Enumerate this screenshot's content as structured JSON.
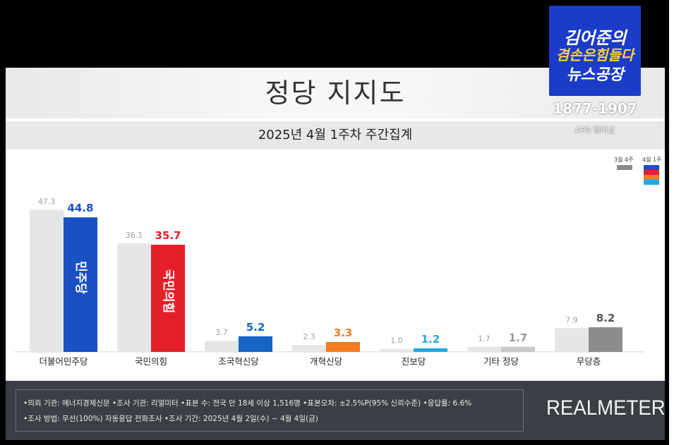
{
  "title": "정당 지지도",
  "subtitle": "2025년 4월 1주차 주간집계",
  "legend": {
    "prev": "3월 4주",
    "curr": "4월 1주"
  },
  "badge": {
    "line1": "김어준의",
    "line2": "겸손은힘들다",
    "line3": "뉴스공장",
    "number": "1877-1907",
    "sub": "ARS 멤버십"
  },
  "chart_data": {
    "type": "bar",
    "categories": [
      "더불어민주당",
      "국민의힘",
      "조국혁신당",
      "개혁신당",
      "진보당",
      "기타 정당",
      "무당층"
    ],
    "series": [
      {
        "name": "3월 4주",
        "values": [
          47.3,
          36.1,
          3.7,
          2.3,
          1.0,
          1.7,
          7.9
        ]
      },
      {
        "name": "4월 1주",
        "values": [
          44.8,
          35.7,
          5.2,
          3.3,
          1.2,
          1.7,
          8.2
        ]
      }
    ],
    "prev_labels": [
      "47.3",
      "36.1",
      "3.7",
      "2.3",
      "1.0",
      "1.7",
      "7.9"
    ],
    "curr_labels": [
      "44.8",
      "35.7",
      "5.2",
      "3.3",
      "1.2",
      "1.7",
      "8.2"
    ],
    "bar_inner_labels": [
      "민주당",
      "국민의힘"
    ],
    "colors": {
      "prev": "#e6e6e6",
      "curr": [
        "#1b4fc4",
        "#e3202a",
        "#1564c6",
        "#f47b20",
        "#23a9e1",
        "#c8c8c8",
        "#8c8c8c"
      ],
      "label": [
        "#1b4fc4",
        "#d8202a",
        "#1564c6",
        "#f47b20",
        "#23a9e1",
        "#999999",
        "#555555"
      ]
    },
    "ylim": [
      0,
      50
    ],
    "grid": false,
    "legend_position": "top-right"
  },
  "footer": {
    "line1": "•의뢰 기관: 에너지경제신문  •조사 기관: 리얼미터 •표본 수: 전국 만 18세 이상 1,516명 •표본오차: ±2.5%P(95% 신뢰수준) •응답률: 6.6%",
    "line2": "•조사 방법: 무선(100%) 자동응답 전화조사 •조사 기간: 2025년 4월 2일(수) ~ 4월 4일(금)",
    "logo": "REALMETER"
  }
}
